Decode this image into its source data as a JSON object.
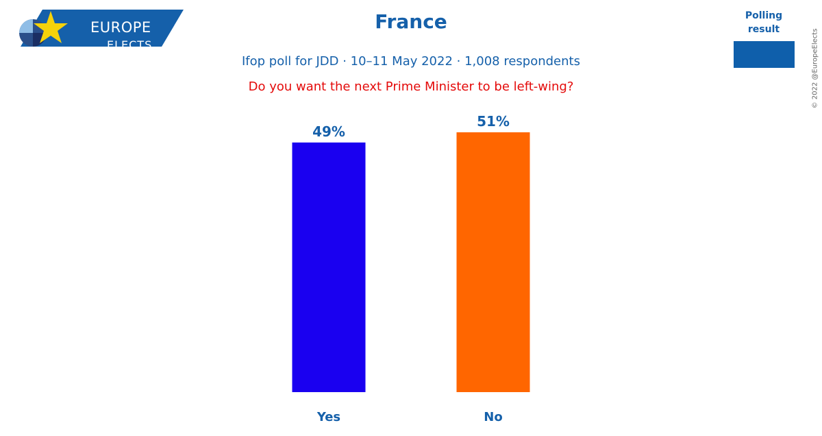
{
  "brand": {
    "line1": "EUROPE",
    "line2": "ELECTS",
    "colors": {
      "banner": "#1560aa",
      "star": "#f5d20a"
    }
  },
  "header": {
    "title": "France",
    "subtitle": "Ifop poll for JDD · 10–11 May 2022 · 1,008 respondents",
    "question": "Do you want the next Prime Minister to be left-wing?"
  },
  "legend": {
    "label": "Polling result",
    "color": "#0f5fab"
  },
  "copyright": "© 2022 @EuropeElects",
  "chart_data": {
    "type": "bar",
    "categories": [
      "Yes",
      "No"
    ],
    "values": [
      49,
      51
    ],
    "value_labels": [
      "49%",
      "51%"
    ],
    "colors": [
      "#1a00f0",
      "#ff6600"
    ],
    "ylim": [
      0,
      51
    ],
    "grid": false,
    "legend_position": "top-right"
  }
}
